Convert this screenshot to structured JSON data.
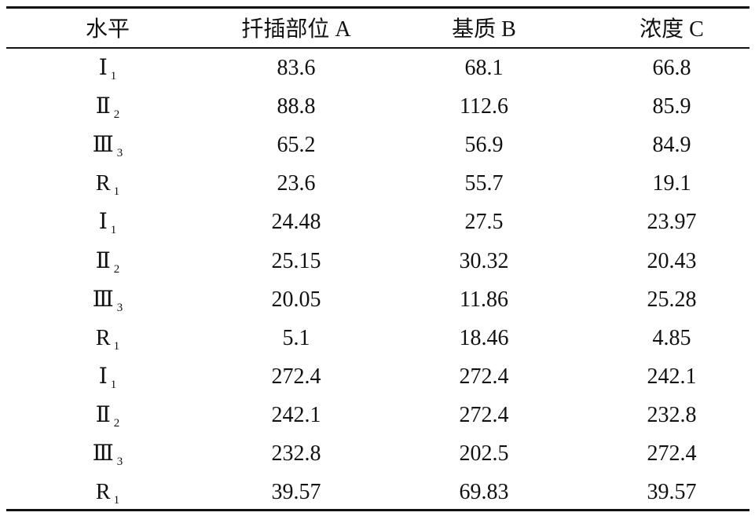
{
  "table": {
    "header": [
      "水平",
      "扦插部位 A",
      "基质 B",
      "浓度 C"
    ],
    "rows": [
      [
        {
          "main": "Ⅰ",
          "sub": "1"
        },
        "83.6",
        "68.1",
        "66.8"
      ],
      [
        {
          "main": "Ⅱ",
          "sub": "2"
        },
        "88.8",
        "112.6",
        "85.9"
      ],
      [
        {
          "main": "Ⅲ",
          "sub": "3"
        },
        "65.2",
        "56.9",
        "84.9"
      ],
      [
        {
          "main": "R",
          "sub": "1"
        },
        "23.6",
        "55.7",
        "19.1"
      ],
      [
        {
          "main": "Ⅰ",
          "sub": "1"
        },
        "24.48",
        "27.5",
        "23.97"
      ],
      [
        {
          "main": "Ⅱ",
          "sub": "2"
        },
        "25.15",
        "30.32",
        "20.43"
      ],
      [
        {
          "main": "Ⅲ",
          "sub": "3"
        },
        "20.05",
        "11.86",
        "25.28"
      ],
      [
        {
          "main": "R",
          "sub": "1"
        },
        "5.1",
        "18.46",
        "4.85"
      ],
      [
        {
          "main": "Ⅰ",
          "sub": "1"
        },
        "272.4",
        "272.4",
        "242.1"
      ],
      [
        {
          "main": "Ⅱ",
          "sub": "2"
        },
        "242.1",
        "272.4",
        "232.8"
      ],
      [
        {
          "main": "Ⅲ",
          "sub": "3"
        },
        "232.8",
        "202.5",
        "272.4"
      ],
      [
        {
          "main": "R",
          "sub": "1"
        },
        "39.57",
        "69.83",
        "39.57"
      ]
    ]
  }
}
